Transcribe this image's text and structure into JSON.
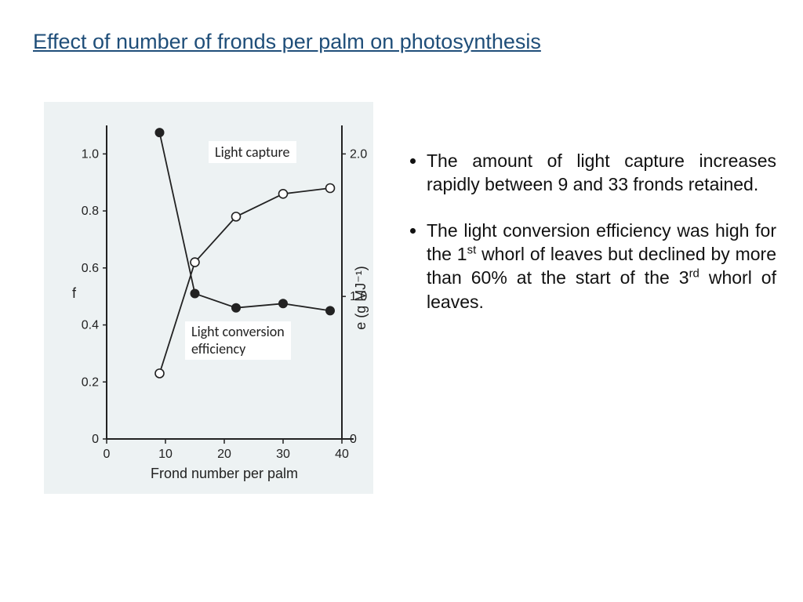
{
  "title": "Effect of number of fronds per palm on photosynthesis",
  "chart": {
    "background_color": "#edf2f3",
    "line_color": "#222222",
    "marker_fill_open": "#ffffff",
    "marker_fill_solid": "#222222",
    "x_axis": {
      "label": "Frond number per palm",
      "ticks": [
        "0",
        "10",
        "20",
        "30",
        "40"
      ],
      "min": 0,
      "max": 40
    },
    "y_left": {
      "label": "f",
      "ticks": [
        "0",
        "0.2",
        "0.4",
        "0.6",
        "0.8",
        "1.0"
      ],
      "min": 0,
      "max": 1.1
    },
    "y_right": {
      "label": "e (g MJ⁻¹)",
      "ticks": [
        "0",
        "1.0",
        "2.0"
      ],
      "min": 0,
      "max": 2.2
    },
    "series_light_capture": {
      "label": "Light capture",
      "marker": "open-circle",
      "points": [
        {
          "x": 9,
          "y": 0.23
        },
        {
          "x": 15,
          "y": 0.62
        },
        {
          "x": 22,
          "y": 0.78
        },
        {
          "x": 30,
          "y": 0.86
        },
        {
          "x": 38,
          "y": 0.88
        }
      ]
    },
    "series_efficiency": {
      "label": "Light conversion efficiency",
      "marker": "solid-circle",
      "axis": "right",
      "points": [
        {
          "x": 9,
          "y": 2.15
        },
        {
          "x": 15,
          "y": 1.02
        },
        {
          "x": 22,
          "y": 0.92
        },
        {
          "x": 30,
          "y": 0.95
        },
        {
          "x": 38,
          "y": 0.9
        }
      ]
    }
  },
  "bullets": {
    "item1_pre": "The amount of light capture increases rapidly between 9 and 33 fronds retained.",
    "item2_a": "The light conversion efficiency was high for the 1",
    "item2_sup1": "st",
    "item2_b": " whorl of leaves but declined by more than 60% at the start of the 3",
    "item2_sup2": "rd",
    "item2_c": " whorl of leaves."
  },
  "labels": {
    "capture": "Light capture",
    "efficiency_l1": "Light conversion",
    "efficiency_l2": "efficiency"
  }
}
